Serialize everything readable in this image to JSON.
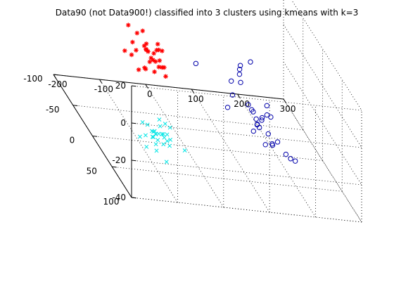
{
  "chart_data": {
    "type": "scatter",
    "title": "Data90 (not Data900!) classified into 3 clusters using kmeans with k=3",
    "projection": "3d",
    "grid": true,
    "legend": "none",
    "xlim": [
      -200,
      300
    ],
    "ylim": [
      -100,
      100
    ],
    "zlim": [
      -40,
      20
    ],
    "x_ticks": [
      "-200",
      "-100",
      "0",
      "100",
      "200",
      "300"
    ],
    "y_ticks": [
      "-100",
      "-50",
      "0",
      "50",
      "100"
    ],
    "z_ticks": [
      "-40",
      "-20",
      "0",
      "20"
    ],
    "series": [
      {
        "color": "#ff0000",
        "marker": "star",
        "points": [
          [
            -99.7,
            -35.6,
            -3.3
          ],
          [
            -88.6,
            -31.3,
            -3.8
          ],
          [
            -84.8,
            -33.2,
            2.5
          ],
          [
            -57.4,
            -39.7,
            7.1
          ],
          [
            -52.3,
            -37.4,
            -1.8
          ],
          [
            -75.7,
            -13.9,
            7.1
          ],
          [
            -88.8,
            -19.4,
            2.6
          ],
          [
            -66.6,
            -19.0,
            3.5
          ],
          [
            -88.2,
            -13.5,
            -5.9
          ],
          [
            -67.3,
            -42.3,
            4.8
          ],
          [
            -41.6,
            -17.0,
            4.8
          ],
          [
            -42.4,
            -35.8,
            -5.8
          ],
          [
            -56.0,
            -31.9,
            2.8
          ],
          [
            -85.0,
            -43.9,
            8.1
          ],
          [
            -70.1,
            -16.9,
            -6.2
          ],
          [
            -69.8,
            -6.9,
            1.0
          ],
          [
            -51.7,
            -19.8,
            -1.8
          ],
          [
            -57.6,
            -6.5,
            1.6
          ],
          [
            -57.1,
            -26.1,
            0.5
          ],
          [
            -56.4,
            -5.0,
            8.2
          ],
          [
            -50.2,
            -6.7,
            -1.2
          ],
          [
            -48.8,
            -19.5,
            -8.0
          ],
          [
            -44.5,
            -11.5,
            0.8
          ],
          [
            -43.1,
            -27.9,
            -0.7
          ],
          [
            -68.0,
            -22.2,
            -7.2
          ],
          [
            -34.1,
            -8.1,
            -6.3
          ],
          [
            -30.4,
            -21.7,
            3.0
          ],
          [
            -35.7,
            -10.1,
            -2.2
          ],
          [
            -36.6,
            -14.6,
            -3.7
          ],
          [
            -24.4,
            -39.9,
            0.8
          ]
        ]
      },
      {
        "color": "#0000aa",
        "marker": "circle",
        "points": [
          [
            72.5,
            -56.4,
            -12.5
          ],
          [
            143.1,
            -49.0,
            -17.6
          ],
          [
            221.9,
            -92.7,
            -19.7
          ],
          [
            172.2,
            -59.3,
            -21.0
          ],
          [
            115.0,
            -12.6,
            -13.8
          ],
          [
            151.4,
            -15.1,
            -18.9
          ],
          [
            89.6,
            4.8,
            -15.4
          ],
          [
            154.3,
            4.4,
            -22.9
          ],
          [
            143.0,
            17.3,
            -19.2
          ],
          [
            146.5,
            -0.7,
            -17.0
          ],
          [
            165.3,
            2.9,
            -20.9
          ],
          [
            206.8,
            -32.8,
            -23.8
          ],
          [
            206.2,
            -22.1,
            -26.4
          ],
          [
            162.6,
            0.1,
            -25.9
          ],
          [
            173.7,
            19.8,
            -27.8
          ],
          [
            213.7,
            19.8,
            -34.7
          ],
          [
            224.6,
            18.9,
            -36.0
          ],
          [
            184.6,
            -6.5,
            -20.7
          ],
          [
            151.1,
            -37.3,
            -9.9
          ],
          [
            181.1,
            12.1,
            -30.9
          ],
          [
            133.5,
            18.5,
            -12.1
          ],
          [
            186.3,
            -20.9,
            -26.9
          ],
          [
            136.6,
            -19.9,
            -1.9
          ],
          [
            189.3,
            15.2,
            -27.9
          ],
          [
            198.9,
            25.2,
            -31.0
          ],
          [
            163.0,
            22.3,
            -21.9
          ],
          [
            132.3,
            20.7,
            -21.8
          ],
          [
            141.5,
            16.8,
            -16.3
          ],
          [
            137.3,
            -18.9,
            0.5
          ],
          [
            146.5,
            34.5,
            -24.1
          ]
        ]
      },
      {
        "color": "#00e5e5",
        "marker": "x",
        "points": [
          [
            -78.7,
            46.6,
            -35.3
          ],
          [
            -28.8,
            -15.7,
            -34.1
          ],
          [
            -19.5,
            23.6,
            -35.2
          ],
          [
            -107.5,
            55.0,
            -27.3
          ],
          [
            -86.1,
            21.7,
            -30.4
          ],
          [
            -66.0,
            23.6,
            -33.1
          ],
          [
            -52.2,
            7.2,
            -32.7
          ],
          [
            -89.9,
            32.3,
            -25.5
          ],
          [
            -92.5,
            26.9,
            -28.7
          ],
          [
            -32.7,
            -6.1,
            -36.8
          ],
          [
            -49.4,
            -6.4,
            -29.3
          ],
          [
            -71.7,
            4.9,
            -32.7
          ],
          [
            -92.0,
            13.6,
            -26.6
          ],
          [
            -20.3,
            -13.2,
            -35.1
          ],
          [
            -43.4,
            14.8,
            -33.0
          ],
          [
            -120.1,
            41.8,
            -23.7
          ],
          [
            -37.6,
            6.1,
            -39.0
          ],
          [
            -72.9,
            17.3,
            -33.1
          ],
          [
            -83.0,
            14.1,
            -29.6
          ],
          [
            -51.6,
            16.3,
            -33.4
          ],
          [
            -102.3,
            13.1,
            -25.7
          ],
          [
            -63.3,
            1.0,
            -34.9
          ],
          [
            -62.4,
            21.5,
            -30.1
          ],
          [
            -61.6,
            -4.1,
            -35.1
          ],
          [
            -61.7,
            6.5,
            -33.0
          ],
          [
            -85.0,
            26.9,
            -32.5
          ],
          [
            -68.4,
            22.6,
            -28.1
          ],
          [
            -45.5,
            -8.9,
            -33.6
          ],
          [
            -117.7,
            41.3,
            -30.0
          ],
          [
            -134.0,
            43.7,
            -24.2
          ]
        ]
      }
    ]
  }
}
